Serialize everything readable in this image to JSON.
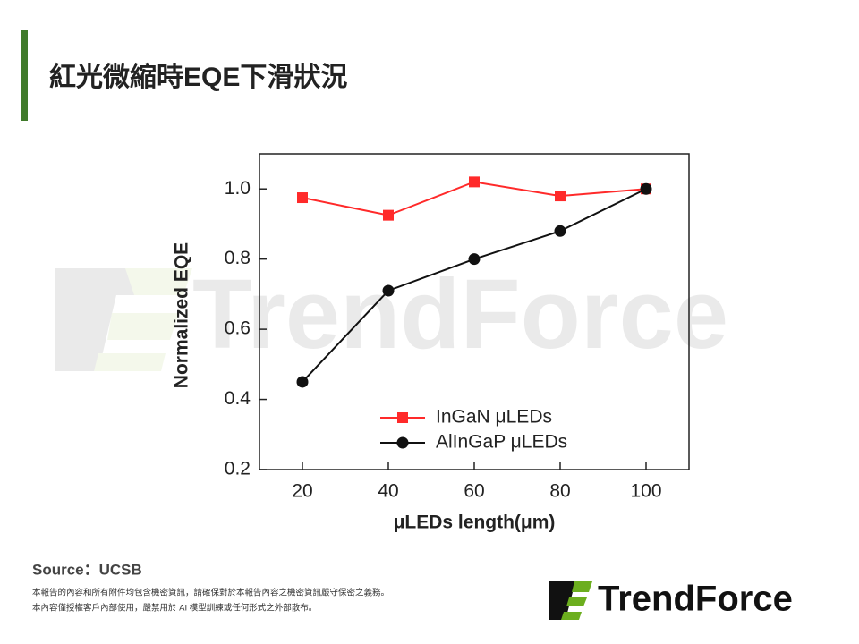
{
  "title": "紅光微縮時EQE下滑狀況",
  "chart_data": {
    "type": "line",
    "x_label": "μLEDs length(μm)",
    "y_label": "Normalized EQE",
    "x": [
      20,
      40,
      60,
      80,
      100
    ],
    "series": [
      {
        "name": "InGaN μLEDs",
        "color": "#ff2a2a",
        "marker": "square",
        "values": [
          0.975,
          0.925,
          1.02,
          0.98,
          1.0
        ]
      },
      {
        "name": "AlInGaP μLEDs",
        "color": "#111111",
        "marker": "circle",
        "values": [
          0.45,
          0.71,
          0.8,
          0.88,
          1.0
        ]
      }
    ],
    "xlim": [
      10,
      110
    ],
    "xticks": [
      20,
      40,
      60,
      80,
      100
    ],
    "ylim": [
      0.2,
      1.1
    ],
    "yticks": [
      0.2,
      0.4,
      0.6,
      0.8,
      {
        "value": 1,
        "label": "1.0"
      }
    ],
    "legend": "lower right"
  },
  "source": "Source：UCSB",
  "disclaimer": [
    "本報告的內容和所有附件均包含機密資訊，請確保對於本報告內容之機密資訊嚴守保密之義務。",
    "本內容僅授權客戶內部使用，嚴禁用於 AI 模型訓練或任何形式之外部散布。"
  ],
  "logo": "TrendForce"
}
